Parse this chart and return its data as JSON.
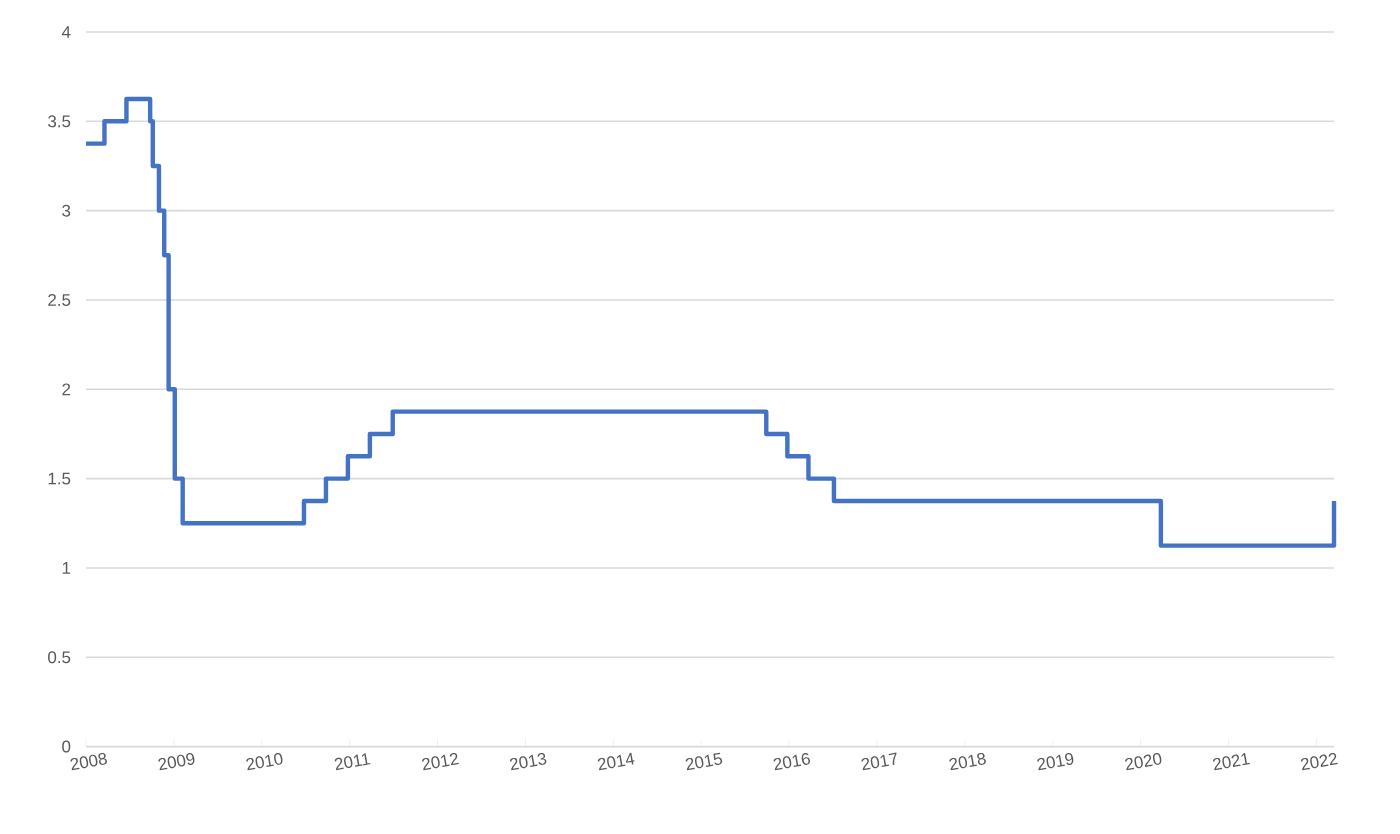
{
  "chart_data": {
    "type": "step",
    "x": [
      2008,
      2008.21,
      2008.46,
      2008.73,
      2008.76,
      2008.83,
      2008.89,
      2008.94,
      2009.01,
      2009.1,
      2010.48,
      2010.73,
      2010.98,
      2011.23,
      2011.49,
      2015.74,
      2015.98,
      2016.22,
      2016.51,
      2020.23,
      2022.2
    ],
    "values": [
      3.375,
      3.5,
      3.625,
      3.5,
      3.25,
      3.0,
      2.75,
      2.0,
      1.5,
      1.25,
      1.375,
      1.5,
      1.625,
      1.75,
      1.875,
      1.75,
      1.625,
      1.5,
      1.375,
      1.125,
      1.375
    ],
    "color": "#4472c4",
    "xlim": [
      2008,
      2022.2
    ],
    "ylim": [
      0,
      4
    ],
    "xticks": [
      2008,
      2009,
      2010,
      2011,
      2012,
      2013,
      2014,
      2015,
      2016,
      2017,
      2018,
      2019,
      2020,
      2021,
      2022
    ],
    "yticks": [
      0,
      0.5,
      1,
      1.5,
      2,
      2.5,
      3,
      3.5,
      4
    ],
    "grid": "y"
  }
}
